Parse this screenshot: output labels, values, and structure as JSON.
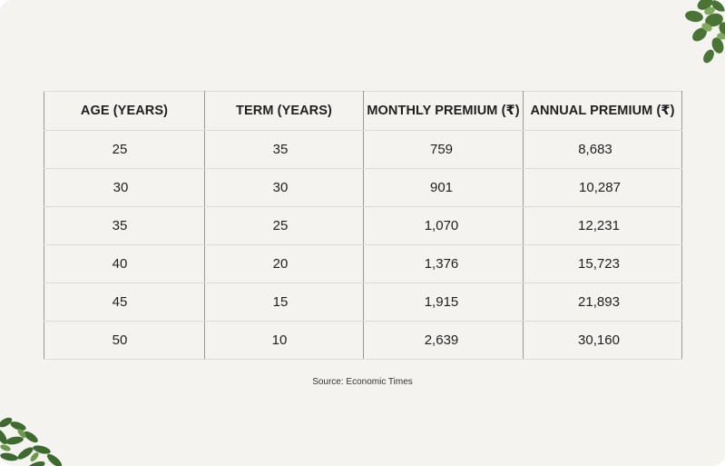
{
  "table": {
    "headers": [
      "AGE (YEARS)",
      "TERM (YEARS)",
      "MONTHLY PREMIUM (₹)",
      "ANNUAL PREMIUM (₹)"
    ],
    "rows": [
      [
        "25",
        "35",
        "759",
        "8,683"
      ],
      [
        "30",
        "30",
        "901",
        "10,287"
      ],
      [
        "35",
        "25",
        "1,070",
        "12,231"
      ],
      [
        "40",
        "20",
        "1,376",
        "15,723"
      ],
      [
        "45",
        "15",
        "1,915",
        "21,893"
      ],
      [
        "50",
        "10",
        "2,639",
        "30,160"
      ]
    ]
  },
  "source": "Source: Economic Times",
  "colors": {
    "background": "#f4f3ef",
    "text": "#1f1f1f",
    "row_divider": "#dedcd6",
    "column_divider": "#9c9a95",
    "plant_leaf": "#4f7a3a"
  },
  "decorations": {
    "top_right": "plant-leaves",
    "bottom_left": "plant-leaves"
  }
}
